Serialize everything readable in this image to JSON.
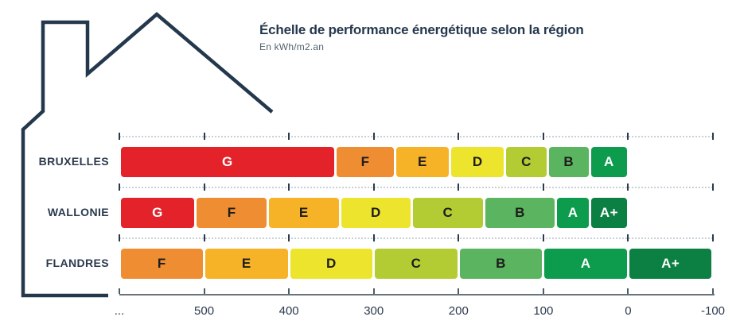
{
  "header": {
    "title": "Échelle de performance énergétique selon la région",
    "subtitle": "En kWh/m2.an"
  },
  "colors": {
    "navy": "#24384D",
    "axis_line": "#68737C",
    "gridline_dots": "#C9D1D8",
    "grade_palette": {
      "G": "#E3222A",
      "F": "#EF8D33",
      "E": "#F7B327",
      "D": "#EDE42D",
      "C": "#B4CC34",
      "B": "#5BB45F",
      "A": "#0D9C4E",
      "A+": "#0C7F43"
    },
    "segment_dark_text": "#1D1D1B",
    "segment_light_text": "#FFFFFF"
  },
  "chart_data": {
    "type": "bar",
    "variant": "horizontal-stacked-scale",
    "title": "Échelle de performance énergétique selon la région",
    "unit_label": "En kWh/m2.an",
    "axis": {
      "orientation": "x",
      "reversed": true,
      "left_value": 600,
      "right_value": -100,
      "tick_values": [
        600,
        500,
        400,
        300,
        200,
        100,
        0,
        -100
      ],
      "tick_labels": [
        "...",
        "500",
        "400",
        "300",
        "200",
        "100",
        "0",
        "-100"
      ],
      "grid": "dotted-per-row"
    },
    "light_text_grades": [
      "G",
      "A",
      "A+"
    ],
    "regions": [
      {
        "name": "BRUXELLES",
        "segments": [
          {
            "grade": "G",
            "from": 600,
            "to": 345
          },
          {
            "grade": "F",
            "from": 345,
            "to": 275
          },
          {
            "grade": "E",
            "from": 275,
            "to": 210
          },
          {
            "grade": "D",
            "from": 210,
            "to": 145
          },
          {
            "grade": "C",
            "from": 145,
            "to": 95
          },
          {
            "grade": "B",
            "from": 95,
            "to": 45
          },
          {
            "grade": "A",
            "from": 45,
            "to": 0
          }
        ]
      },
      {
        "name": "WALLONIE",
        "segments": [
          {
            "grade": "G",
            "from": 600,
            "to": 510
          },
          {
            "grade": "F",
            "from": 510,
            "to": 425
          },
          {
            "grade": "E",
            "from": 425,
            "to": 340
          },
          {
            "grade": "D",
            "from": 340,
            "to": 255
          },
          {
            "grade": "C",
            "from": 255,
            "to": 170
          },
          {
            "grade": "B",
            "from": 170,
            "to": 85
          },
          {
            "grade": "A",
            "from": 85,
            "to": 45
          },
          {
            "grade": "A+",
            "from": 45,
            "to": 0
          }
        ]
      },
      {
        "name": "FLANDRES",
        "segments": [
          {
            "grade": "F",
            "from": 600,
            "to": 500
          },
          {
            "grade": "E",
            "from": 500,
            "to": 400
          },
          {
            "grade": "D",
            "from": 400,
            "to": 300
          },
          {
            "grade": "C",
            "from": 300,
            "to": 200
          },
          {
            "grade": "B",
            "from": 200,
            "to": 100
          },
          {
            "grade": "A",
            "from": 100,
            "to": 0
          },
          {
            "grade": "A+",
            "from": 0,
            "to": -100
          }
        ]
      }
    ]
  }
}
